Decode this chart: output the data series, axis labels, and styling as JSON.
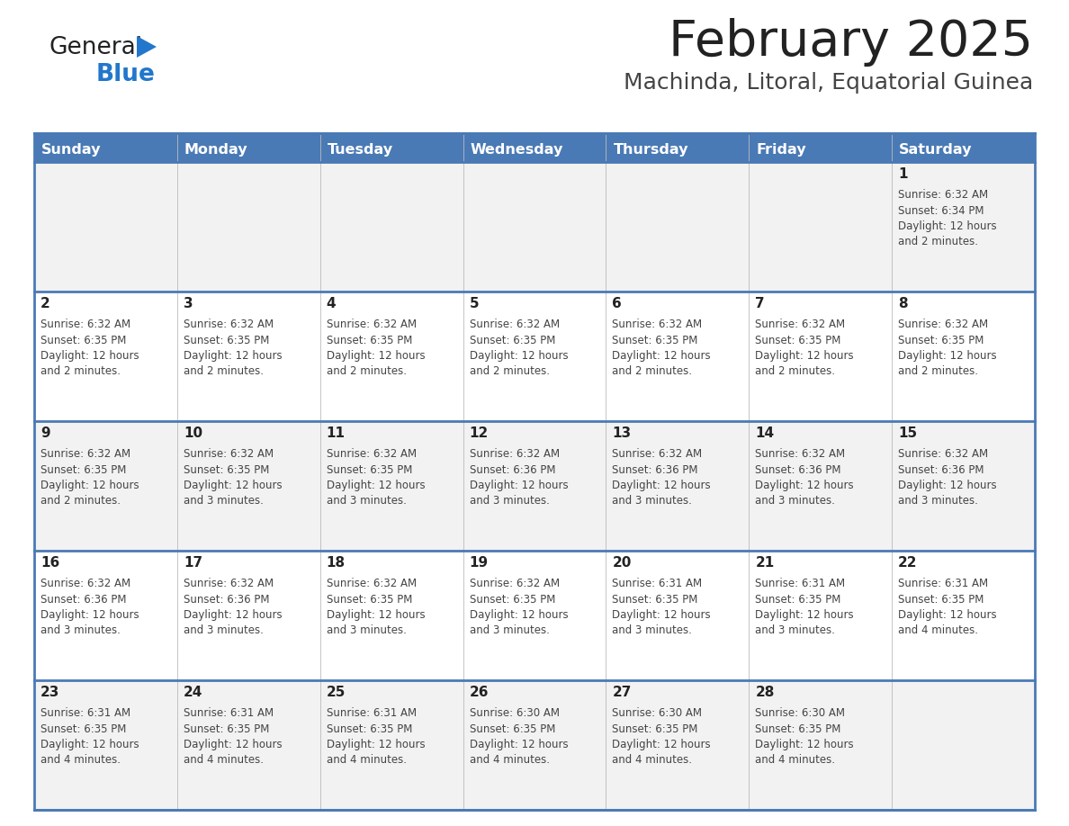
{
  "title": "February 2025",
  "subtitle": "Machinda, Litoral, Equatorial Guinea",
  "header_bg_color": "#4a7ab5",
  "header_text_color": "#ffffff",
  "days_of_week": [
    "Sunday",
    "Monday",
    "Tuesday",
    "Wednesday",
    "Thursday",
    "Friday",
    "Saturday"
  ],
  "row_bg_even": "#f2f2f2",
  "row_bg_odd": "#ffffff",
  "cell_text_color": "#444444",
  "day_number_color": "#222222",
  "separator_color": "#4a7ab5",
  "logo_black": "#222222",
  "logo_blue": "#2277cc",
  "title_color": "#222222",
  "subtitle_color": "#444444",
  "calendar_data": [
    [
      {
        "day": null,
        "sunrise": null,
        "sunset": null,
        "daylight": null
      },
      {
        "day": null,
        "sunrise": null,
        "sunset": null,
        "daylight": null
      },
      {
        "day": null,
        "sunrise": null,
        "sunset": null,
        "daylight": null
      },
      {
        "day": null,
        "sunrise": null,
        "sunset": null,
        "daylight": null
      },
      {
        "day": null,
        "sunrise": null,
        "sunset": null,
        "daylight": null
      },
      {
        "day": null,
        "sunrise": null,
        "sunset": null,
        "daylight": null
      },
      {
        "day": 1,
        "sunrise": "6:32 AM",
        "sunset": "6:34 PM",
        "daylight": "12 hours\nand 2 minutes."
      }
    ],
    [
      {
        "day": 2,
        "sunrise": "6:32 AM",
        "sunset": "6:35 PM",
        "daylight": "12 hours\nand 2 minutes."
      },
      {
        "day": 3,
        "sunrise": "6:32 AM",
        "sunset": "6:35 PM",
        "daylight": "12 hours\nand 2 minutes."
      },
      {
        "day": 4,
        "sunrise": "6:32 AM",
        "sunset": "6:35 PM",
        "daylight": "12 hours\nand 2 minutes."
      },
      {
        "day": 5,
        "sunrise": "6:32 AM",
        "sunset": "6:35 PM",
        "daylight": "12 hours\nand 2 minutes."
      },
      {
        "day": 6,
        "sunrise": "6:32 AM",
        "sunset": "6:35 PM",
        "daylight": "12 hours\nand 2 minutes."
      },
      {
        "day": 7,
        "sunrise": "6:32 AM",
        "sunset": "6:35 PM",
        "daylight": "12 hours\nand 2 minutes."
      },
      {
        "day": 8,
        "sunrise": "6:32 AM",
        "sunset": "6:35 PM",
        "daylight": "12 hours\nand 2 minutes."
      }
    ],
    [
      {
        "day": 9,
        "sunrise": "6:32 AM",
        "sunset": "6:35 PM",
        "daylight": "12 hours\nand 2 minutes."
      },
      {
        "day": 10,
        "sunrise": "6:32 AM",
        "sunset": "6:35 PM",
        "daylight": "12 hours\nand 3 minutes."
      },
      {
        "day": 11,
        "sunrise": "6:32 AM",
        "sunset": "6:35 PM",
        "daylight": "12 hours\nand 3 minutes."
      },
      {
        "day": 12,
        "sunrise": "6:32 AM",
        "sunset": "6:36 PM",
        "daylight": "12 hours\nand 3 minutes."
      },
      {
        "day": 13,
        "sunrise": "6:32 AM",
        "sunset": "6:36 PM",
        "daylight": "12 hours\nand 3 minutes."
      },
      {
        "day": 14,
        "sunrise": "6:32 AM",
        "sunset": "6:36 PM",
        "daylight": "12 hours\nand 3 minutes."
      },
      {
        "day": 15,
        "sunrise": "6:32 AM",
        "sunset": "6:36 PM",
        "daylight": "12 hours\nand 3 minutes."
      }
    ],
    [
      {
        "day": 16,
        "sunrise": "6:32 AM",
        "sunset": "6:36 PM",
        "daylight": "12 hours\nand 3 minutes."
      },
      {
        "day": 17,
        "sunrise": "6:32 AM",
        "sunset": "6:36 PM",
        "daylight": "12 hours\nand 3 minutes."
      },
      {
        "day": 18,
        "sunrise": "6:32 AM",
        "sunset": "6:35 PM",
        "daylight": "12 hours\nand 3 minutes."
      },
      {
        "day": 19,
        "sunrise": "6:32 AM",
        "sunset": "6:35 PM",
        "daylight": "12 hours\nand 3 minutes."
      },
      {
        "day": 20,
        "sunrise": "6:31 AM",
        "sunset": "6:35 PM",
        "daylight": "12 hours\nand 3 minutes."
      },
      {
        "day": 21,
        "sunrise": "6:31 AM",
        "sunset": "6:35 PM",
        "daylight": "12 hours\nand 3 minutes."
      },
      {
        "day": 22,
        "sunrise": "6:31 AM",
        "sunset": "6:35 PM",
        "daylight": "12 hours\nand 4 minutes."
      }
    ],
    [
      {
        "day": 23,
        "sunrise": "6:31 AM",
        "sunset": "6:35 PM",
        "daylight": "12 hours\nand 4 minutes."
      },
      {
        "day": 24,
        "sunrise": "6:31 AM",
        "sunset": "6:35 PM",
        "daylight": "12 hours\nand 4 minutes."
      },
      {
        "day": 25,
        "sunrise": "6:31 AM",
        "sunset": "6:35 PM",
        "daylight": "12 hours\nand 4 minutes."
      },
      {
        "day": 26,
        "sunrise": "6:30 AM",
        "sunset": "6:35 PM",
        "daylight": "12 hours\nand 4 minutes."
      },
      {
        "day": 27,
        "sunrise": "6:30 AM",
        "sunset": "6:35 PM",
        "daylight": "12 hours\nand 4 minutes."
      },
      {
        "day": 28,
        "sunrise": "6:30 AM",
        "sunset": "6:35 PM",
        "daylight": "12 hours\nand 4 minutes."
      },
      {
        "day": null,
        "sunrise": null,
        "sunset": null,
        "daylight": null
      }
    ]
  ]
}
